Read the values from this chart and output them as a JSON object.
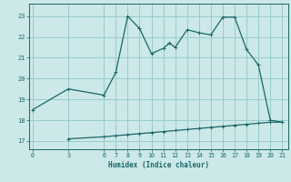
{
  "xlabel": "Humidex (Indice chaleur)",
  "bg_color": "#cce8e8",
  "grid_color": "#99cccc",
  "line_color": "#1a6868",
  "line1_x": [
    0,
    3,
    6,
    7,
    8,
    9,
    10,
    11,
    11.5,
    12,
    13,
    14,
    15,
    16,
    17,
    18,
    19,
    20,
    21
  ],
  "line1_y": [
    18.5,
    19.5,
    19.2,
    20.3,
    23.0,
    22.4,
    21.2,
    21.45,
    21.7,
    21.5,
    22.35,
    22.2,
    22.1,
    22.95,
    22.95,
    21.4,
    20.65,
    18.0,
    17.9
  ],
  "line2_x": [
    3,
    6,
    7,
    8,
    9,
    10,
    11,
    12,
    13,
    14,
    15,
    16,
    17,
    18,
    19,
    20,
    21
  ],
  "line2_y": [
    17.1,
    17.2,
    17.25,
    17.3,
    17.35,
    17.4,
    17.45,
    17.5,
    17.55,
    17.6,
    17.65,
    17.7,
    17.75,
    17.8,
    17.85,
    17.9,
    17.9
  ],
  "xticks": [
    0,
    3,
    6,
    7,
    8,
    9,
    10,
    11,
    12,
    13,
    14,
    15,
    16,
    17,
    18,
    19,
    20,
    21
  ],
  "yticks": [
    17,
    18,
    19,
    20,
    21,
    22,
    23
  ],
  "xlim": [
    -0.3,
    21.5
  ],
  "ylim": [
    16.6,
    23.6
  ]
}
